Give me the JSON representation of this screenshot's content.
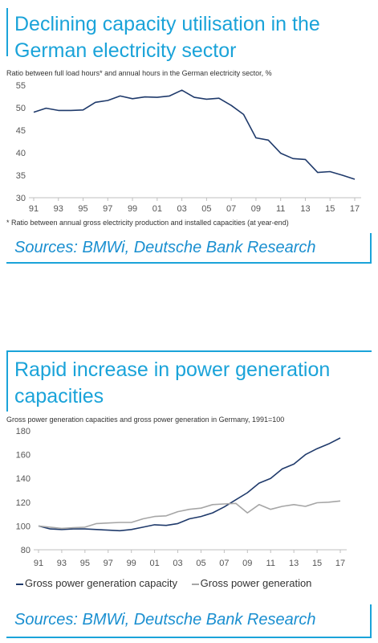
{
  "chart_data": [
    {
      "type": "line",
      "title": "Declining capacity utilisation in the German electricity sector",
      "subtitle": "Ratio between full load hours* and annual hours in the German electricity sector, %",
      "footnote": "* Ratio between annual gross electricity production and installed capacities (at year-end)",
      "sources": "Sources: BMWi, Deutsche Bank Research",
      "x_ticks": [
        "91",
        "93",
        "95",
        "97",
        "99",
        "01",
        "03",
        "05",
        "07",
        "09",
        "11",
        "13",
        "15",
        "17"
      ],
      "y_ticks": [
        "30",
        "35",
        "40",
        "45",
        "50",
        "55"
      ],
      "ylim": [
        30,
        55
      ],
      "grid": false,
      "x": [
        1991,
        1992,
        1993,
        1994,
        1995,
        1996,
        1997,
        1998,
        1999,
        2000,
        2001,
        2002,
        2003,
        2004,
        2005,
        2006,
        2007,
        2008,
        2009,
        2010,
        2011,
        2012,
        2013,
        2014,
        2015,
        2016,
        2017
      ],
      "series": [
        {
          "color": "#1f3a6b",
          "values": [
            49.0,
            49.9,
            49.4,
            49.4,
            49.5,
            51.2,
            51.6,
            52.6,
            52.0,
            52.4,
            52.3,
            52.6,
            53.9,
            52.3,
            51.9,
            52.1,
            50.5,
            48.5,
            43.3,
            42.8,
            39.9,
            38.7,
            38.5,
            35.6,
            35.8,
            35.0,
            34.1
          ]
        }
      ]
    },
    {
      "type": "line",
      "title": "Rapid increase in power generation capacities",
      "subtitle": "Gross power generation capacities and gross power generation in Germany, 1991=100",
      "sources": "Sources: BMWi, Deutsche Bank Research",
      "x_ticks": [
        "91",
        "93",
        "95",
        "97",
        "99",
        "01",
        "03",
        "05",
        "07",
        "09",
        "11",
        "13",
        "15",
        "17"
      ],
      "y_ticks": [
        "80",
        "100",
        "120",
        "140",
        "160",
        "180"
      ],
      "ylim": [
        80,
        180
      ],
      "grid": false,
      "legend_position": "bottom",
      "x": [
        1991,
        1992,
        1993,
        1994,
        1995,
        1996,
        1997,
        1998,
        1999,
        2000,
        2001,
        2002,
        2003,
        2004,
        2005,
        2006,
        2007,
        2008,
        2009,
        2010,
        2011,
        2012,
        2013,
        2014,
        2015,
        2016,
        2017
      ],
      "series": [
        {
          "name": "Gross power generation capacity",
          "color": "#1f3a6b",
          "values": [
            100,
            97.5,
            97,
            97.5,
            97.5,
            97,
            96.5,
            96,
            97,
            99,
            101,
            100.5,
            102,
            106,
            108,
            111,
            116,
            122,
            128,
            136,
            140,
            148,
            152,
            160,
            165,
            169,
            174
          ]
        },
        {
          "name": "Gross power generation",
          "color": "#a6a6a6",
          "values": [
            100,
            99,
            98,
            98.5,
            99,
            102,
            102.5,
            103,
            103,
            106,
            108,
            108.5,
            112,
            114,
            115,
            118,
            118.5,
            119,
            111,
            118,
            114,
            116.5,
            118,
            116.5,
            119.5,
            120,
            121
          ]
        }
      ]
    }
  ],
  "legend_labels": [
    "Gross power generation capacity",
    "Gross power generation"
  ],
  "accent_color": "#1aa3d9",
  "axis_color": "#bfbfbf",
  "tick_color": "#555555"
}
